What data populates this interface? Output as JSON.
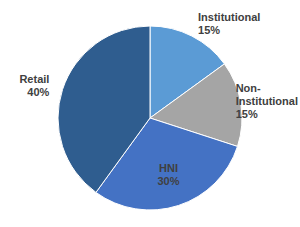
{
  "chart_data": {
    "type": "pie",
    "categories": [
      "Institutional",
      "Non-Institutional",
      "HNI",
      "Retail"
    ],
    "values": [
      15,
      15,
      30,
      40
    ],
    "value_labels": [
      "15%",
      "15%",
      "30%",
      "40%"
    ],
    "colors": [
      "#5b9bd5",
      "#a5a5a5",
      "#4472c4",
      "#2f5d8f"
    ],
    "data_labels": true
  }
}
